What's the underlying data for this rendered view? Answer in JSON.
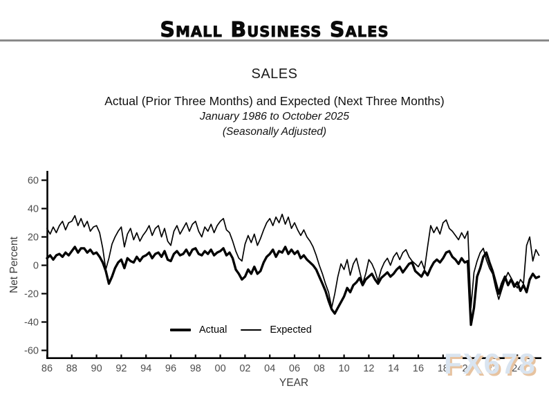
{
  "page": {
    "title": "Small Business Sales",
    "watermark": "FX678",
    "background": "#ffffff"
  },
  "chart_data": {
    "type": "line",
    "title": "SALES",
    "subtitle": "Actual (Prior Three Months) and Expected (Next Three Months)",
    "period": "January 1986 to October 2025",
    "note": "(Seasonally Adjusted)",
    "xlabel": "YEAR",
    "ylabel": "Net Percent",
    "x_start": 1986,
    "x_step": 0.25,
    "x_end": 2025.75,
    "ylim": [
      -60,
      60
    ],
    "y_ticks": [
      60,
      40,
      20,
      0,
      -20,
      -40,
      -60
    ],
    "x_tick_years": [
      1986,
      1988,
      1990,
      1992,
      1994,
      1996,
      1998,
      2000,
      2002,
      2004,
      2006,
      2008,
      2010,
      2012,
      2014,
      2016,
      2018,
      2020,
      2022,
      2024
    ],
    "x_tick_labels": [
      "86",
      "88",
      "90",
      "92",
      "94",
      "96",
      "98",
      "00",
      "02",
      "04",
      "06",
      "08",
      "10",
      "12",
      "14",
      "16",
      "18",
      "20",
      "22",
      "24"
    ],
    "grid": false,
    "legend": {
      "position": "inside-bottom-center",
      "items": [
        "Actual",
        "Expected"
      ]
    },
    "series": [
      {
        "name": "Actual",
        "color": "#000000",
        "line_width": 3.4,
        "values": [
          5,
          7,
          4,
          7,
          8,
          6,
          9,
          7,
          10,
          13,
          9,
          12,
          12,
          9,
          11,
          8,
          9,
          6,
          2,
          -4,
          -13,
          -8,
          -2,
          2,
          4,
          -2,
          5,
          3,
          2,
          6,
          3,
          6,
          7,
          9,
          5,
          8,
          9,
          6,
          10,
          4,
          3,
          8,
          10,
          7,
          8,
          11,
          7,
          11,
          12,
          8,
          7,
          10,
          8,
          11,
          7,
          9,
          10,
          12,
          7,
          9,
          5,
          -3,
          -6,
          -10,
          -8,
          -3,
          -6,
          -1,
          -6,
          -4,
          2,
          6,
          8,
          11,
          6,
          10,
          9,
          13,
          8,
          11,
          8,
          10,
          5,
          7,
          4,
          2,
          0,
          -3,
          -8,
          -13,
          -18,
          -25,
          -31,
          -34,
          -30,
          -26,
          -22,
          -16,
          -19,
          -14,
          -12,
          -9,
          -14,
          -10,
          -8,
          -6,
          -10,
          -13,
          -9,
          -7,
          -5,
          -8,
          -6,
          -3,
          -1,
          -5,
          -2,
          1,
          2,
          -4,
          -6,
          -8,
          -4,
          -7,
          -2,
          2,
          4,
          2,
          5,
          9,
          10,
          6,
          4,
          1,
          5,
          2,
          3,
          -42,
          -30,
          -8,
          -2,
          6,
          9,
          2,
          -4,
          -12,
          -20,
          -13,
          -8,
          -14,
          -10,
          -15,
          -12,
          -18,
          -14,
          -19,
          -10,
          -6,
          -9,
          -8
        ]
      },
      {
        "name": "Expected",
        "color": "#000000",
        "line_width": 1.7,
        "values": [
          26,
          22,
          27,
          23,
          28,
          31,
          25,
          30,
          31,
          35,
          28,
          33,
          27,
          31,
          24,
          27,
          28,
          23,
          12,
          -3,
          5,
          15,
          20,
          24,
          27,
          13,
          22,
          26,
          18,
          23,
          17,
          21,
          24,
          28,
          21,
          26,
          28,
          20,
          26,
          17,
          14,
          24,
          28,
          22,
          26,
          30,
          24,
          29,
          31,
          24,
          20,
          27,
          24,
          29,
          23,
          28,
          31,
          33,
          25,
          23,
          17,
          10,
          5,
          3,
          15,
          21,
          16,
          22,
          14,
          19,
          25,
          30,
          33,
          28,
          34,
          30,
          36,
          29,
          34,
          26,
          30,
          25,
          21,
          25,
          20,
          17,
          13,
          7,
          0,
          -6,
          -13,
          -19,
          -30,
          -20,
          -8,
          1,
          -3,
          4,
          -7,
          1,
          5,
          -4,
          -13,
          -6,
          4,
          1,
          -4,
          -11,
          -3,
          2,
          5,
          0,
          6,
          9,
          4,
          9,
          11,
          6,
          3,
          1,
          -1,
          3,
          -3,
          13,
          28,
          23,
          27,
          22,
          30,
          32,
          26,
          24,
          21,
          18,
          23,
          19,
          24,
          -30,
          -5,
          3,
          9,
          12,
          4,
          -2,
          -6,
          -16,
          -24,
          -17,
          -10,
          -5,
          -9,
          -13,
          -16,
          -10,
          -13,
          14,
          20,
          3,
          11,
          7
        ]
      }
    ]
  },
  "colors": {
    "divider": "#8a8a8a",
    "axis": "#000000",
    "tick_label": "#4d4d4d",
    "axis_title": "#3d3d3d",
    "watermark_fill": "#d9e4f0",
    "watermark_shadow": "#e7c3a0"
  }
}
